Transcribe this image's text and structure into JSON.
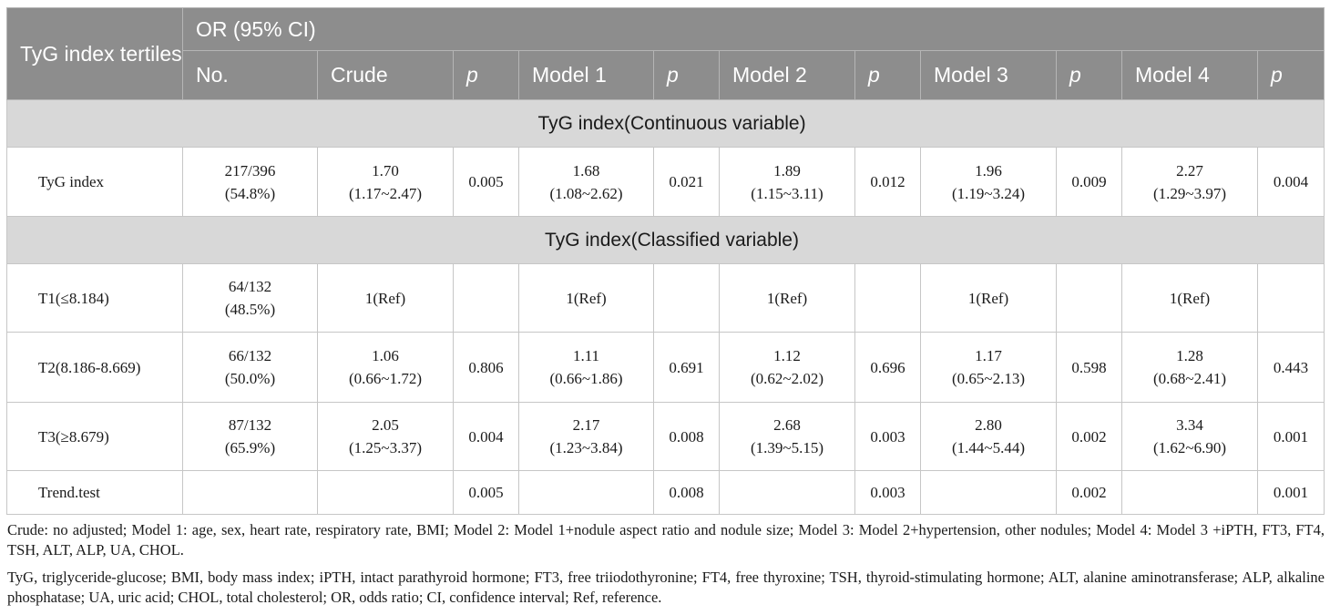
{
  "header": {
    "row_label": "TyG index tertiles",
    "or_label": "OR (95% CI)",
    "columns": [
      "No.",
      "Crude",
      "p",
      "Model 1",
      "p",
      "Model 2",
      "p",
      "Model 3",
      "p",
      "Model 4",
      "p"
    ]
  },
  "sections": {
    "continuous": "TyG index(Continuous variable)",
    "classified": "TyG index(Classified variable)"
  },
  "rows": [
    {
      "label": "TyG index",
      "no": [
        "217/396",
        "(54.8%)"
      ],
      "crude": [
        "1.70",
        "(1.17~2.47)"
      ],
      "p_crude": "0.005",
      "m1": [
        "1.68",
        "(1.08~2.62)"
      ],
      "p_m1": "0.021",
      "m2": [
        "1.89",
        "(1.15~3.11)"
      ],
      "p_m2": "0.012",
      "m3": [
        "1.96",
        "(1.19~3.24)"
      ],
      "p_m3": "0.009",
      "m4": [
        "2.27",
        "(1.29~3.97)"
      ],
      "p_m4": "0.004"
    },
    {
      "label": "T1(≤8.184)",
      "no": [
        "64/132",
        "(48.5%)"
      ],
      "crude": [
        "1(Ref)",
        ""
      ],
      "p_crude": "",
      "m1": [
        "1(Ref)",
        ""
      ],
      "p_m1": "",
      "m2": [
        "1(Ref)",
        ""
      ],
      "p_m2": "",
      "m3": [
        "1(Ref)",
        ""
      ],
      "p_m3": "",
      "m4": [
        "1(Ref)",
        ""
      ],
      "p_m4": ""
    },
    {
      "label": "T2(8.186-8.669)",
      "no": [
        "66/132",
        "(50.0%)"
      ],
      "crude": [
        "1.06",
        "(0.66~1.72)"
      ],
      "p_crude": "0.806",
      "m1": [
        "1.11",
        "(0.66~1.86)"
      ],
      "p_m1": "0.691",
      "m2": [
        "1.12",
        "(0.62~2.02)"
      ],
      "p_m2": "0.696",
      "m3": [
        "1.17",
        "(0.65~2.13)"
      ],
      "p_m3": "0.598",
      "m4": [
        "1.28",
        "(0.68~2.41)"
      ],
      "p_m4": "0.443"
    },
    {
      "label": "T3(≥8.679)",
      "no": [
        "87/132",
        "(65.9%)"
      ],
      "crude": [
        "2.05",
        "(1.25~3.37)"
      ],
      "p_crude": "0.004",
      "m1": [
        "2.17",
        "(1.23~3.84)"
      ],
      "p_m1": "0.008",
      "m2": [
        "2.68",
        "(1.39~5.15)"
      ],
      "p_m2": "0.003",
      "m3": [
        "2.80",
        "(1.44~5.44)"
      ],
      "p_m3": "0.002",
      "m4": [
        "3.34",
        "(1.62~6.90)"
      ],
      "p_m4": "0.001"
    },
    {
      "label": "Trend.test",
      "p_crude": "0.005",
      "p_m1": "0.008",
      "p_m2": "0.003",
      "p_m3": "0.002",
      "p_m4": "0.001"
    }
  ],
  "notes": {
    "note1": "Crude: no adjusted; Model 1: age, sex, heart rate, respiratory rate, BMI; Model 2: Model 1+nodule aspect ratio and nodule size; Model 3: Model 2+hypertension, other nodules; Model 4: Model 3 +iPTH, FT3, FT4, TSH, ALT, ALP, UA, CHOL.",
    "note2": "TyG, triglyceride-glucose; BMI, body mass index; iPTH, intact parathyroid hormone; FT3, free triiodothyronine; FT4, free thyroxine; TSH, thyroid-stimulating hormone; ALT, alanine aminotransferase; ALP, alkaline phosphatase; UA, uric acid; CHOL, total cholesterol; OR, odds ratio; CI, confidence interval; Ref, reference."
  }
}
